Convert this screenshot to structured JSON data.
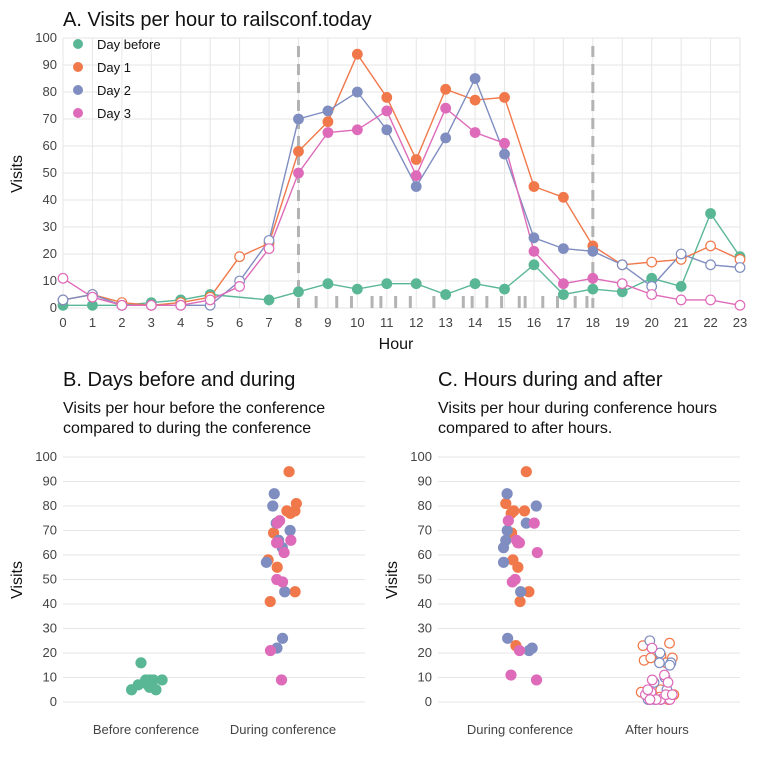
{
  "colors": {
    "day_before": "#5AB795",
    "day1": "#F0784A",
    "day2": "#7F8DC0",
    "day3": "#DE6BB9",
    "ref_line": "#b3b3b3"
  },
  "chart_data": [
    {
      "type": "line",
      "title": "A. Visits per hour to railsconf.today",
      "xlabel": "Hour",
      "ylabel": "Visits",
      "ylim": [
        0,
        100
      ],
      "xlim": [
        0,
        23
      ],
      "x": [
        0,
        1,
        2,
        3,
        4,
        5,
        6,
        7,
        8,
        9,
        10,
        11,
        12,
        13,
        14,
        15,
        16,
        17,
        18,
        19,
        20,
        21,
        22,
        23
      ],
      "y_ticks": [
        0,
        10,
        20,
        30,
        40,
        50,
        60,
        70,
        80,
        90,
        100
      ],
      "legend_position": "top-left",
      "reference_lines_x": [
        8,
        18
      ],
      "conference_hours": [
        8,
        18
      ],
      "rug_x": [
        8.6,
        9.3,
        9.8,
        10.5,
        10.8,
        11.3,
        11.8,
        12.6,
        13.6,
        13.9,
        14.4,
        14.9,
        15.5,
        15.7,
        16.3,
        16.8,
        17.4,
        17.8
      ],
      "series": [
        {
          "name": "Day before",
          "color_key": "day_before",
          "values": [
            1,
            1,
            1,
            2,
            3,
            5,
            null,
            3,
            6,
            9,
            7,
            9,
            9,
            5,
            9,
            7,
            16,
            5,
            7,
            6,
            11,
            8,
            35,
            19
          ]
        },
        {
          "name": "Day 1",
          "color_key": "day1",
          "values": [
            3,
            5,
            2,
            1,
            2,
            4,
            19,
            24,
            58,
            69,
            94,
            78,
            55,
            81,
            77,
            78,
            45,
            41,
            23,
            16,
            17,
            18,
            23,
            18
          ]
        },
        {
          "name": "Day 2",
          "color_key": "day2",
          "values": [
            3,
            5,
            1,
            1,
            1,
            1,
            10,
            25,
            70,
            73,
            80,
            66,
            45,
            63,
            85,
            57,
            26,
            22,
            21,
            16,
            8,
            20,
            16,
            15
          ]
        },
        {
          "name": "Day 3",
          "color_key": "day3",
          "values": [
            11,
            4,
            1,
            1,
            1,
            3,
            8,
            22,
            50,
            65,
            66,
            73,
            49,
            74,
            65,
            61,
            21,
            9,
            11,
            9,
            5,
            3,
            3,
            1
          ]
        }
      ]
    },
    {
      "type": "scatter",
      "title": "B. Days before and during",
      "subtitle_lines": [
        "Visits per hour before the conference",
        "compared to during the conference"
      ],
      "ylabel": "Visits",
      "ylim": [
        0,
        100
      ],
      "categories": [
        "Before conference",
        "During conference"
      ],
      "points": [
        {
          "category": "Before conference",
          "series": "Day before",
          "values": [
            6,
            9,
            7,
            9,
            9,
            5,
            9,
            7,
            16,
            5
          ]
        },
        {
          "category": "During conference",
          "series": "Day 1",
          "values": [
            58,
            69,
            94,
            78,
            55,
            81,
            77,
            78,
            45,
            41
          ]
        },
        {
          "category": "During conference",
          "series": "Day 2",
          "values": [
            70,
            73,
            80,
            66,
            45,
            63,
            85,
            57,
            26,
            22
          ]
        },
        {
          "category": "During conference",
          "series": "Day 3",
          "values": [
            50,
            65,
            66,
            73,
            49,
            74,
            65,
            61,
            21,
            9
          ]
        }
      ]
    },
    {
      "type": "scatter",
      "title": "C. Hours during and after",
      "subtitle_lines": [
        "Visits per hour during conference hours",
        "compared to after hours."
      ],
      "ylabel": "Visits",
      "ylim": [
        0,
        100
      ],
      "categories": [
        "During conference",
        "After hours"
      ],
      "points": [
        {
          "category": "During conference",
          "series": "Day 1",
          "values": [
            58,
            69,
            94,
            78,
            55,
            81,
            77,
            78,
            45,
            41,
            23
          ]
        },
        {
          "category": "During conference",
          "series": "Day 2",
          "values": [
            70,
            73,
            80,
            66,
            45,
            63,
            85,
            57,
            26,
            22,
            21
          ]
        },
        {
          "category": "During conference",
          "series": "Day 3",
          "values": [
            50,
            65,
            66,
            73,
            49,
            74,
            65,
            61,
            21,
            9,
            11
          ]
        },
        {
          "category": "After hours",
          "series": "Day 1",
          "values": [
            3,
            5,
            2,
            1,
            2,
            4,
            19,
            24,
            16,
            17,
            18,
            23,
            18
          ]
        },
        {
          "category": "After hours",
          "series": "Day 2",
          "values": [
            3,
            5,
            1,
            1,
            1,
            1,
            10,
            25,
            16,
            8,
            20,
            16,
            15
          ]
        },
        {
          "category": "After hours",
          "series": "Day 3",
          "values": [
            11,
            4,
            1,
            1,
            1,
            3,
            8,
            22,
            9,
            5,
            3,
            3,
            1
          ]
        }
      ]
    }
  ]
}
